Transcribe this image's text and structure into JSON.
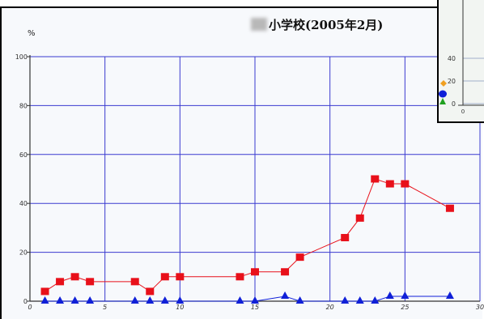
{
  "chart_data": {
    "type": "line",
    "title": "小学校(2005年2月)",
    "ylabel": "%",
    "xlabel": "",
    "xlim": [
      0,
      30
    ],
    "ylim": [
      0,
      100
    ],
    "xticks": [
      0,
      5,
      10,
      15,
      20,
      25,
      30
    ],
    "yticks": [
      0,
      20,
      40,
      60,
      80,
      100
    ],
    "grid": true,
    "series": [
      {
        "color": "#e8101a",
        "marker": "square",
        "points": [
          [
            1,
            4
          ],
          [
            2,
            8
          ],
          [
            3,
            10
          ],
          [
            4,
            8
          ],
          [
            7,
            8
          ],
          [
            8,
            4
          ],
          [
            9,
            10
          ],
          [
            10,
            10
          ],
          [
            14,
            10
          ],
          [
            15,
            12
          ],
          [
            17,
            12
          ],
          [
            18,
            18
          ],
          [
            21,
            26
          ],
          [
            22,
            34
          ],
          [
            23,
            50
          ],
          [
            24,
            48
          ],
          [
            25,
            48
          ],
          [
            28,
            38
          ]
        ]
      },
      {
        "color": "#1020d8",
        "marker": "triangle",
        "points": [
          [
            1,
            0
          ],
          [
            2,
            0
          ],
          [
            3,
            0
          ],
          [
            4,
            0
          ],
          [
            7,
            0
          ],
          [
            8,
            0
          ],
          [
            9,
            0
          ],
          [
            10,
            0
          ],
          [
            14,
            0
          ],
          [
            15,
            0
          ],
          [
            17,
            2
          ],
          [
            18,
            0
          ],
          [
            21,
            0
          ],
          [
            22,
            0
          ],
          [
            23,
            0
          ],
          [
            24,
            2
          ],
          [
            25,
            2
          ],
          [
            28,
            2
          ]
        ]
      }
    ]
  },
  "inset": {
    "yticks": [
      0,
      20,
      40
    ],
    "xtick": "0",
    "legend_colors": [
      "#f0a020",
      "#1020d8",
      "#20a020"
    ]
  }
}
